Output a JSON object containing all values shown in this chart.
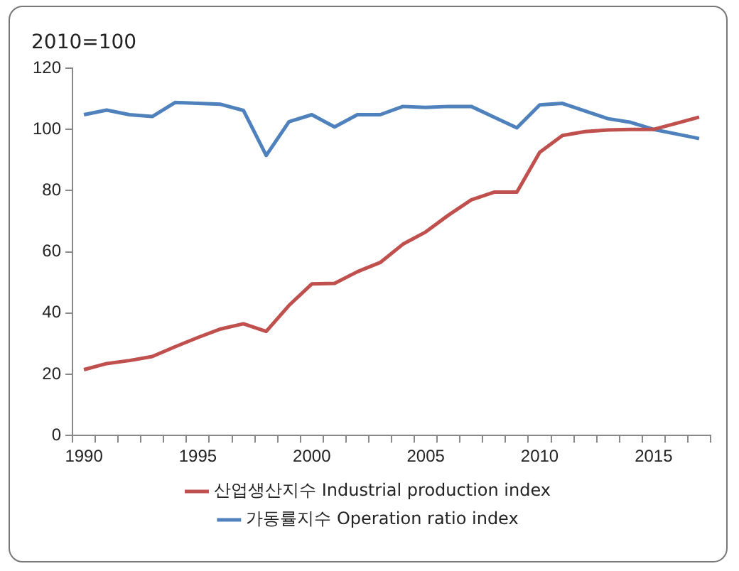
{
  "chart_data": {
    "type": "line",
    "ylabel": "2010=100",
    "categories": [
      "1990",
      null,
      null,
      null,
      null,
      "1995",
      null,
      null,
      null,
      null,
      "2000",
      null,
      null,
      null,
      null,
      "2005",
      null,
      null,
      null,
      null,
      "2010",
      null,
      null,
      null,
      null,
      "2015",
      null,
      null
    ],
    "series": [
      {
        "name": "산업생산지수 Industrial production index",
        "color": "#c0504d",
        "values": [
          21.5,
          23.5,
          24.5,
          25.8,
          29,
          32,
          34.8,
          36.5,
          34,
          42.5,
          49.5,
          49.7,
          53.5,
          56.5,
          62.5,
          66.5,
          72,
          77,
          79.5,
          79.5,
          92.5,
          98,
          99.3,
          99.8,
          100,
          100,
          102,
          104
        ]
      },
      {
        "name": "가동률지수 Operation ratio index",
        "color": "#4f81bd",
        "values": [
          104.8,
          106.3,
          104.8,
          104.2,
          108.8,
          108.5,
          108.2,
          106.2,
          91.5,
          102.5,
          104.8,
          100.8,
          104.8,
          104.8,
          107.5,
          107.2,
          107.5,
          107.5,
          104,
          100.5,
          108,
          108.5,
          106,
          103.5,
          102.3,
          100,
          98.5,
          97
        ]
      }
    ],
    "ylim": [
      0,
      120
    ],
    "yticks": [
      0,
      20,
      40,
      60,
      80,
      100,
      120
    ],
    "grid": false,
    "legend": "bottom",
    "marker": "none",
    "line_style": "solid"
  }
}
